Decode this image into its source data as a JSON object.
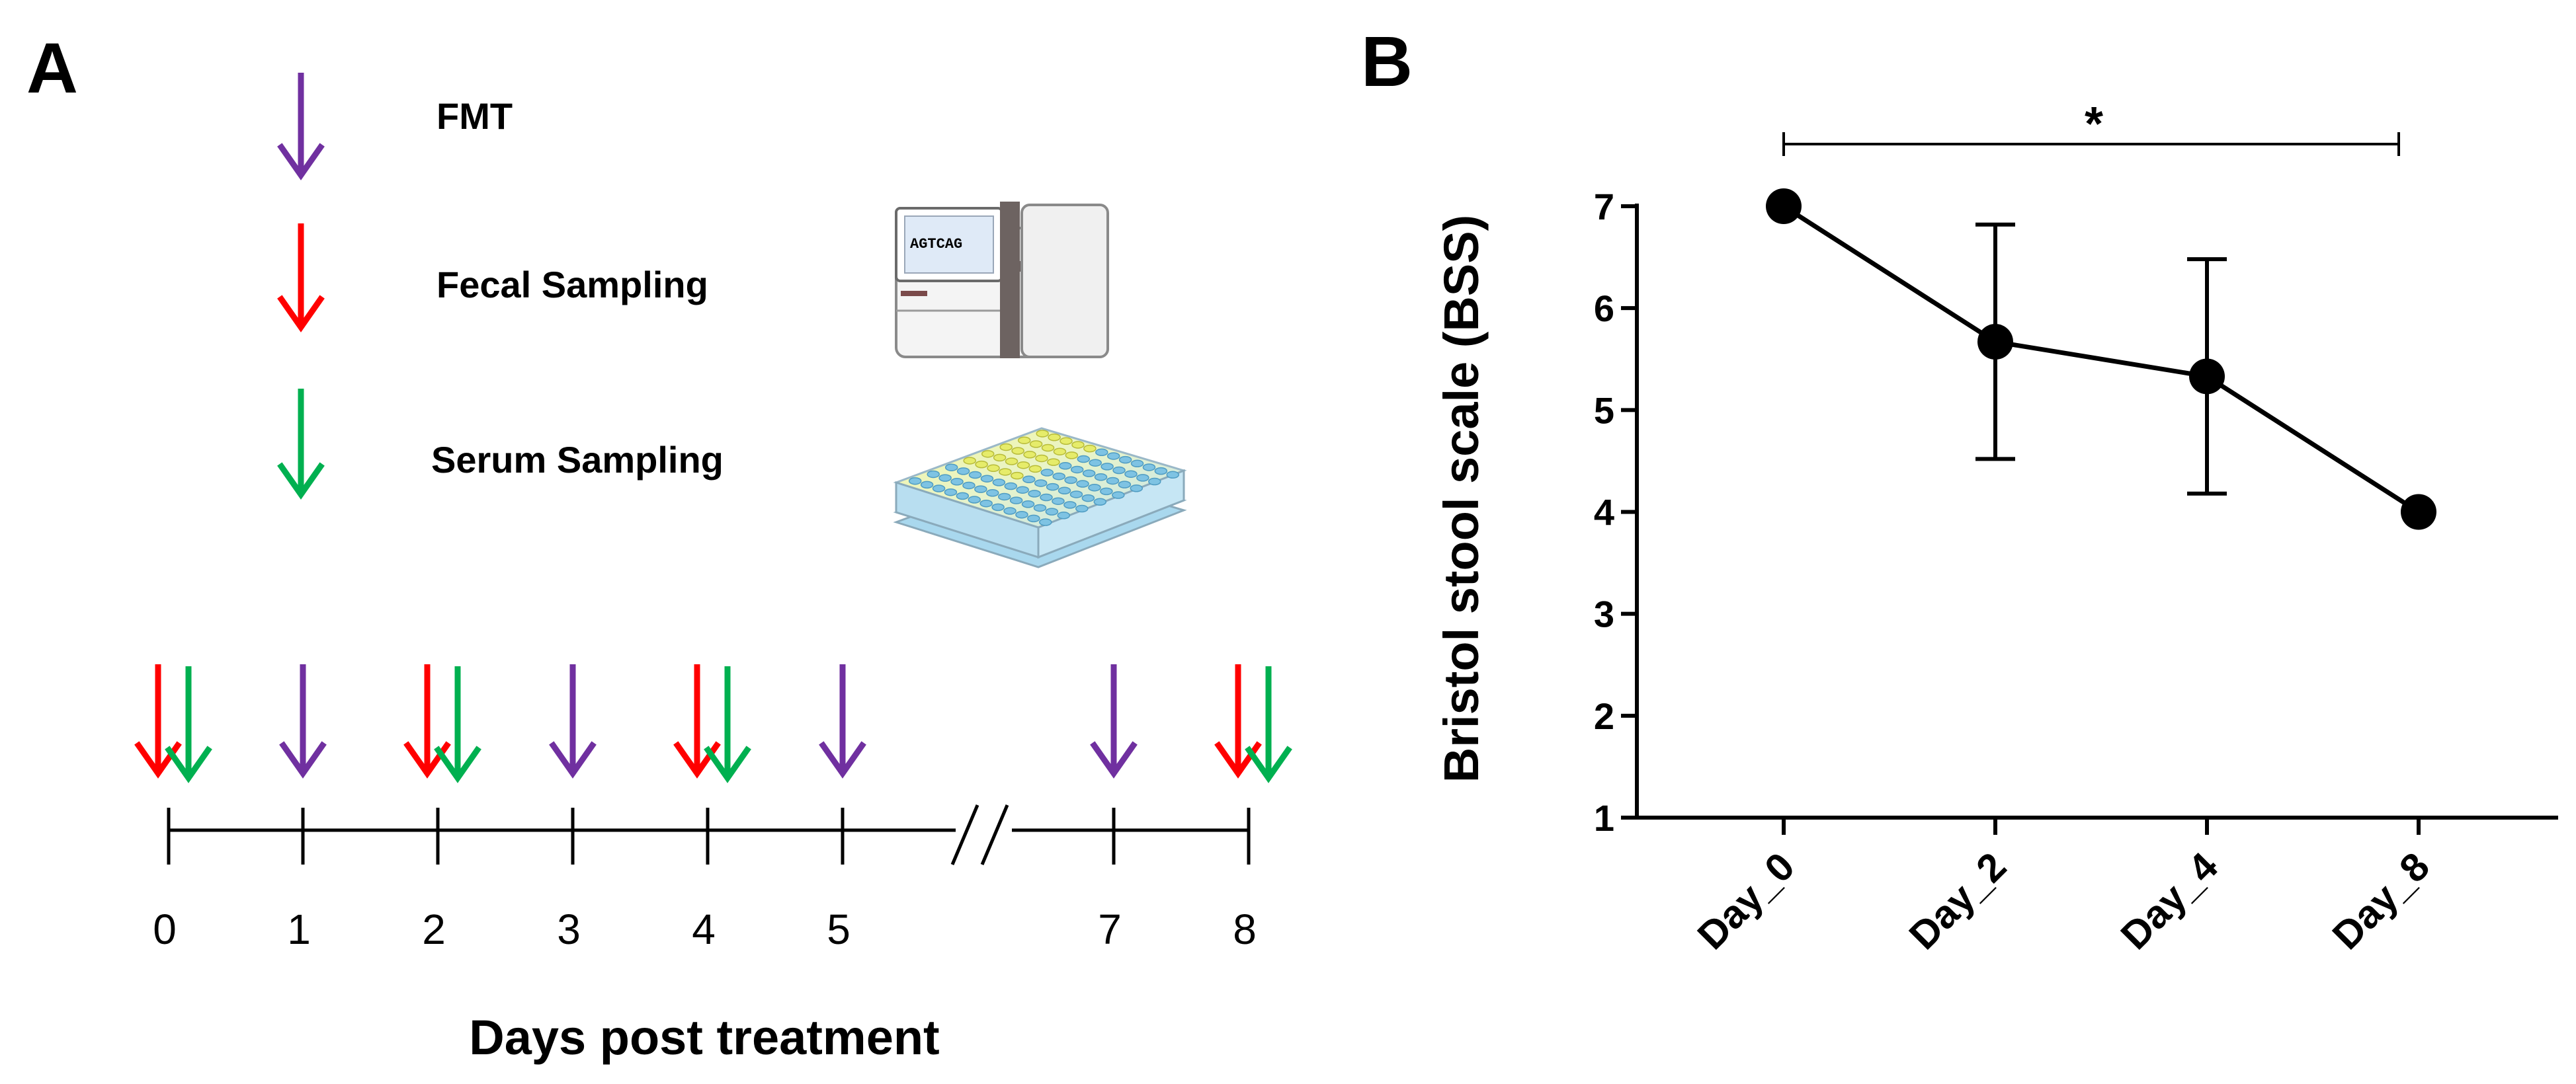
{
  "panel_a": {
    "letter": "A",
    "legend": [
      {
        "key": "fmt",
        "label": "FMT",
        "color": "#7030a0"
      },
      {
        "key": "fecal",
        "label": "Fecal Sampling",
        "color": "#ff0000"
      },
      {
        "key": "serum",
        "label": "Serum Sampling",
        "color": "#00b050"
      }
    ],
    "sequencer_text": "AGTCAG",
    "timeline": {
      "days": [
        "0",
        "1",
        "2",
        "3",
        "4",
        "5",
        "7",
        "8"
      ],
      "axis_title": "Days post treatment",
      "events": [
        {
          "day": "0",
          "fecal": true,
          "serum": true,
          "fmt": false
        },
        {
          "day": "1",
          "fecal": false,
          "serum": false,
          "fmt": true
        },
        {
          "day": "2",
          "fecal": true,
          "serum": true,
          "fmt": false
        },
        {
          "day": "3",
          "fecal": false,
          "serum": false,
          "fmt": true
        },
        {
          "day": "4",
          "fecal": true,
          "serum": true,
          "fmt": false
        },
        {
          "day": "5",
          "fecal": false,
          "serum": false,
          "fmt": true
        },
        {
          "day": "7",
          "fecal": false,
          "serum": false,
          "fmt": true
        },
        {
          "day": "8",
          "fecal": true,
          "serum": true,
          "fmt": false
        }
      ]
    }
  },
  "panel_b": {
    "letter": "B"
  },
  "chart_data": {
    "type": "line",
    "title": "",
    "xlabel": "",
    "ylabel": "Bristol stool scale (BSS)",
    "categories": [
      "Day_0",
      "Day_2",
      "Day_4",
      "Day_8"
    ],
    "series": [
      {
        "name": "BSS",
        "values": [
          7.0,
          5.67,
          5.33,
          4.0
        ],
        "error": [
          0,
          1.15,
          1.15,
          0
        ],
        "color": "#000000"
      }
    ],
    "ylim": [
      1,
      7
    ],
    "yticks": [
      1,
      2,
      3,
      4,
      5,
      6,
      7
    ],
    "significance": {
      "from": "Day_0",
      "to": "Day_8",
      "label": "*"
    }
  }
}
